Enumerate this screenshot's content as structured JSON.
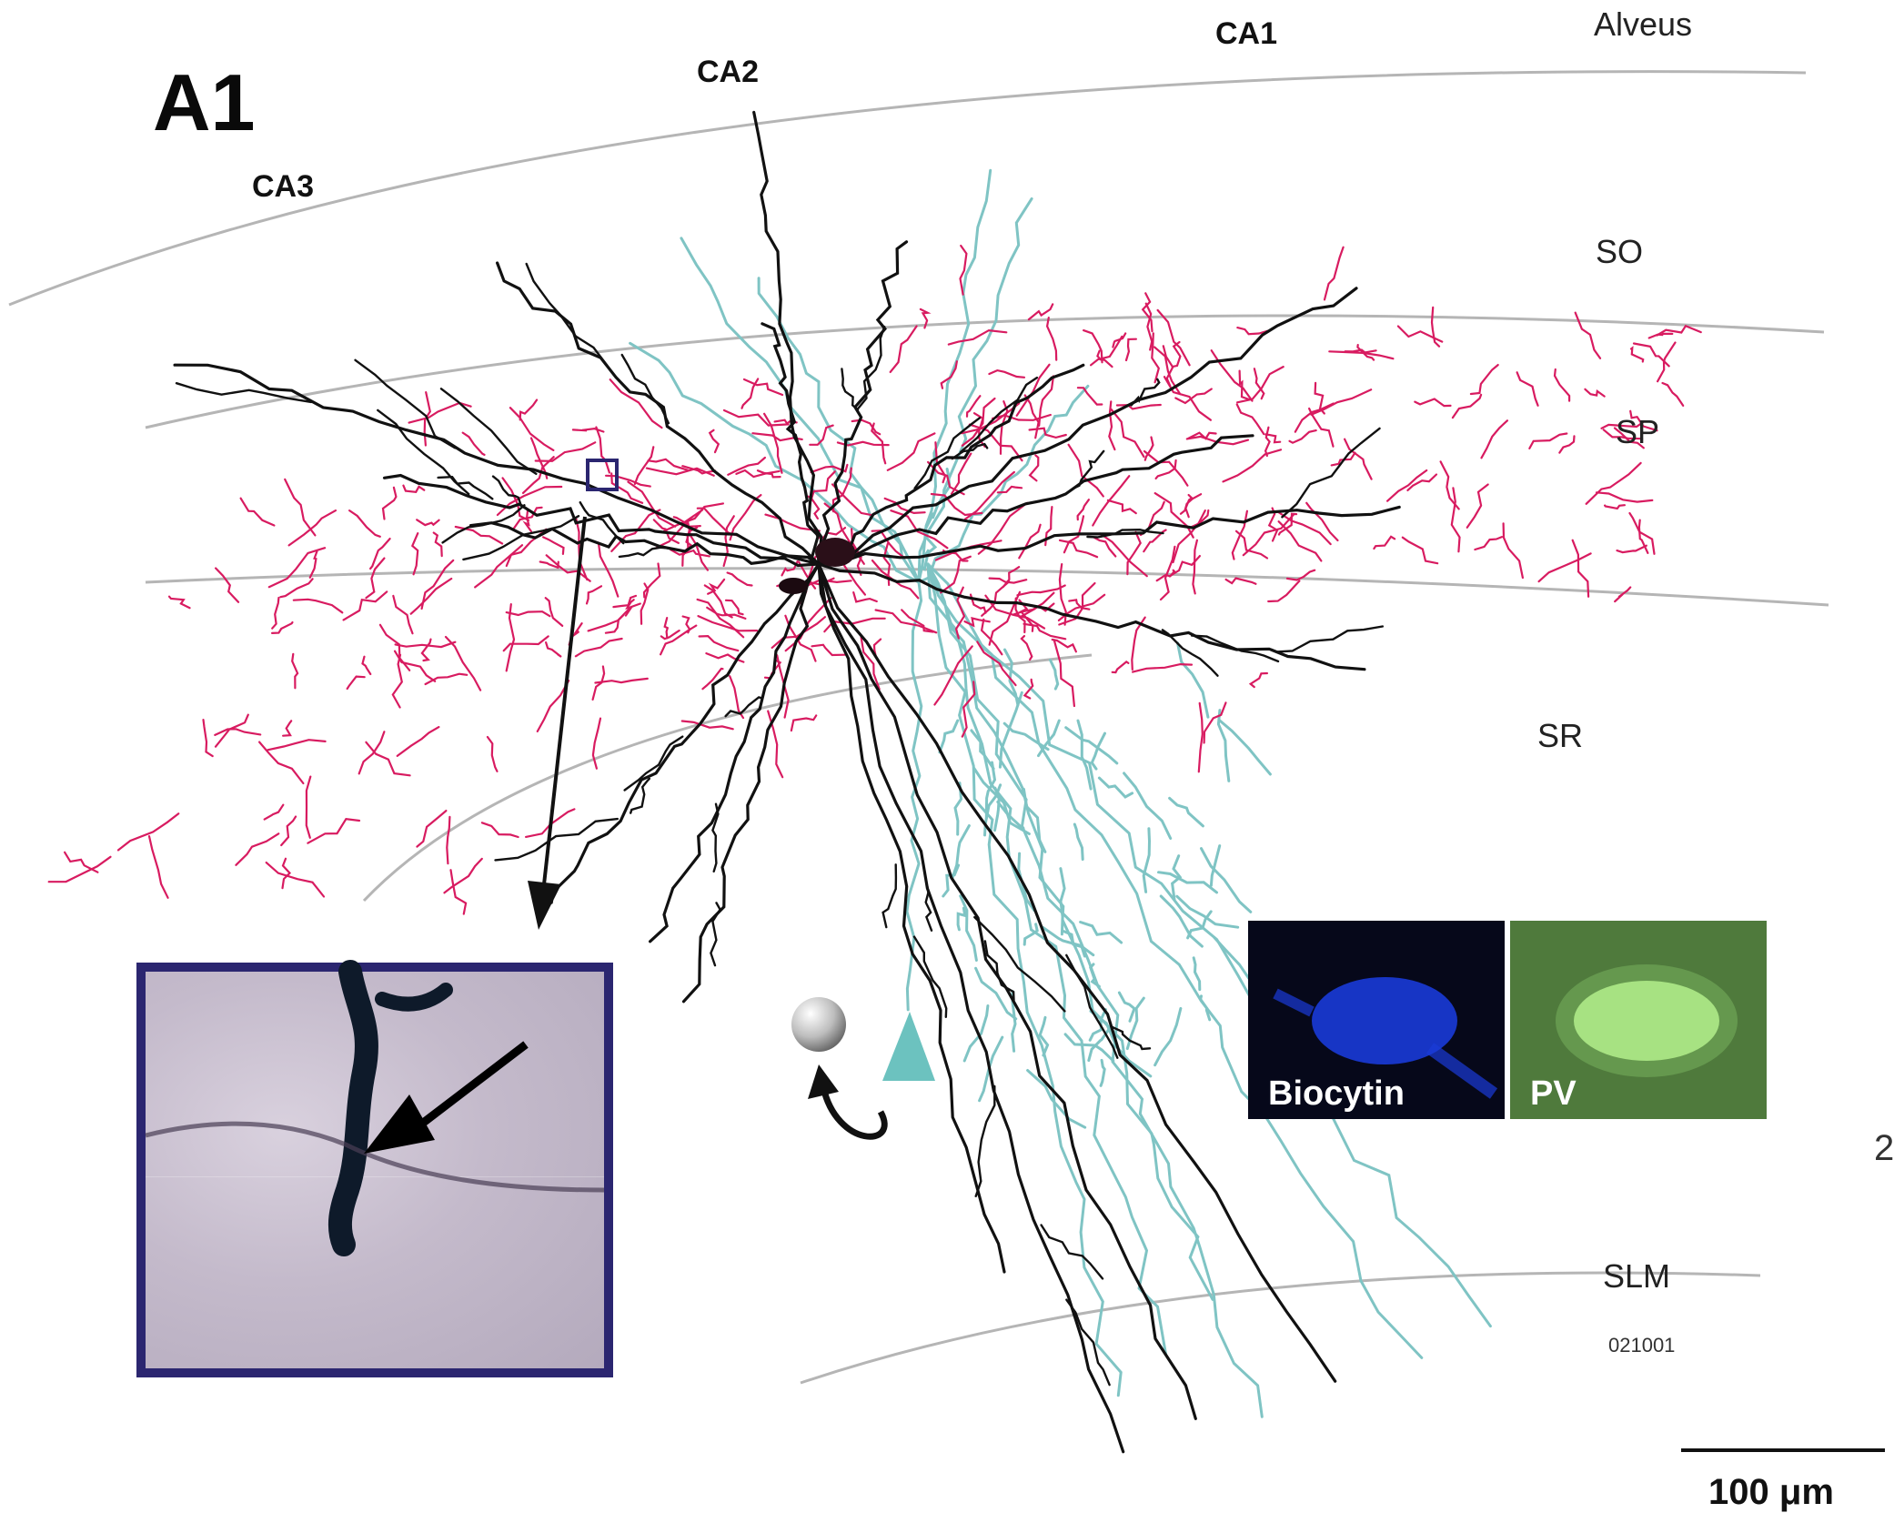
{
  "figure": {
    "panel_label": "A1",
    "regions": {
      "ca3": "CA3",
      "ca2": "CA2",
      "ca1": "CA1"
    },
    "layers": {
      "alveus": "Alveus",
      "so": "SO",
      "sp": "SP",
      "sr": "SR",
      "slm": "SLM"
    },
    "cell_code": "021001",
    "scale_label": "100 μm",
    "edge_mark": "2",
    "fluorescence": [
      {
        "label": "Biocytin",
        "color": "#1a3bd8"
      },
      {
        "label": "PV",
        "color": "#c6ff9a"
      }
    ],
    "colors": {
      "axon": "#d81b60",
      "interneuron_dendrites": "#111111",
      "pyramidal_cell": "#7fc4c4",
      "layer_boundary": "#b5b5b5",
      "inset_border": "#2b2670"
    }
  }
}
